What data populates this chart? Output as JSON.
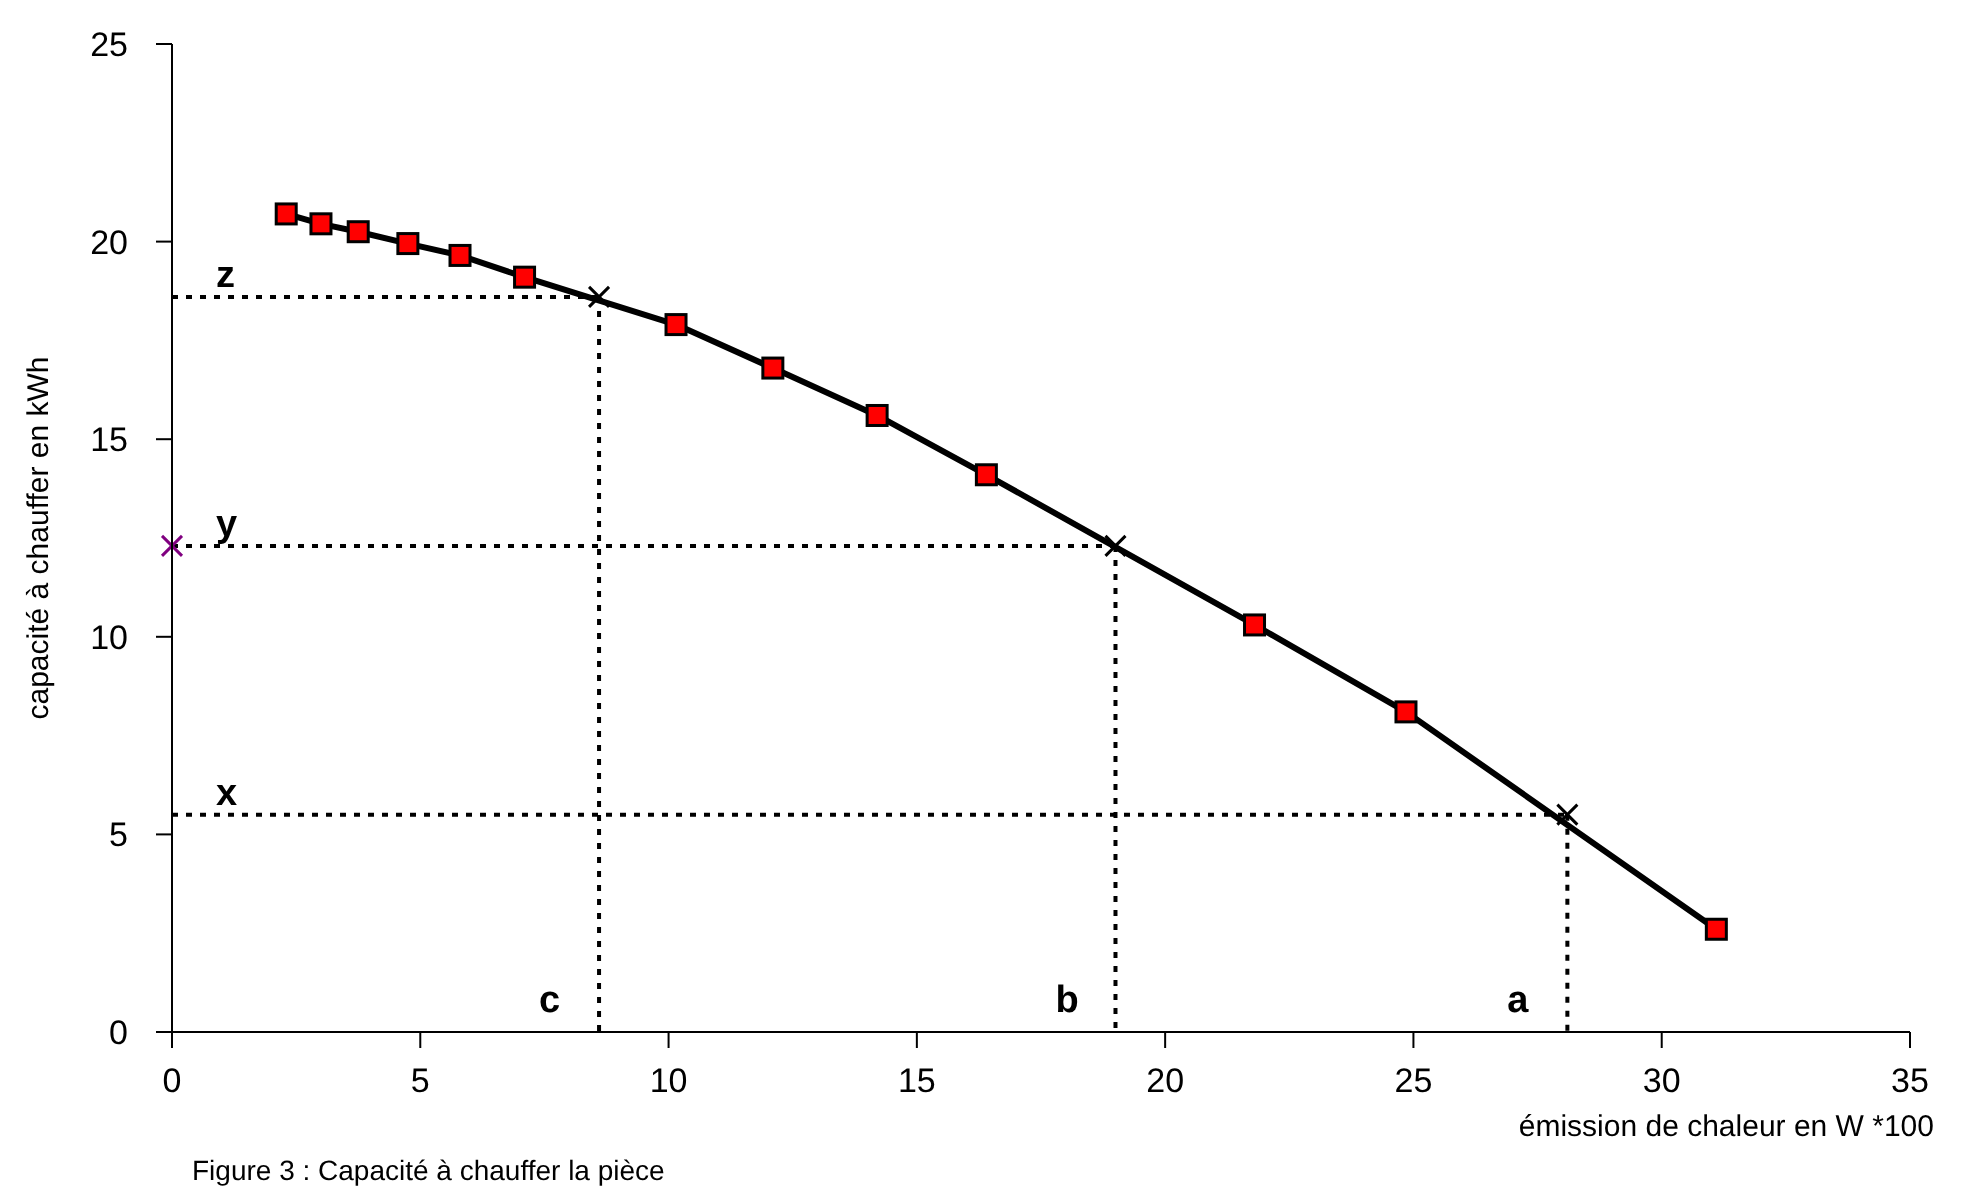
{
  "chart_data": {
    "type": "line",
    "xlabel": "émission de chaleur en W *100",
    "ylabel": "capacité à chauffer en kWh",
    "xlim": [
      0,
      35
    ],
    "ylim": [
      0,
      25
    ],
    "xticks": [
      0,
      5,
      10,
      15,
      20,
      25,
      30,
      35
    ],
    "yticks": [
      0,
      5,
      10,
      15,
      20,
      25
    ],
    "grid": false,
    "series": [
      {
        "name": "z",
        "color": "#000000",
        "line_style": "dotted",
        "x": [
          0,
          8.6
        ],
        "values": [
          18.6,
          18.6
        ]
      },
      {
        "name": "c",
        "color": "#000000",
        "line_style": "dotted",
        "x": [
          8.6,
          8.6
        ],
        "values": [
          18.6,
          0
        ]
      },
      {
        "name": "y",
        "color": "#000000",
        "line_style": "dotted",
        "x": [
          0,
          19.0
        ],
        "values": [
          12.3,
          12.3
        ]
      },
      {
        "name": "b",
        "color": "#000000",
        "line_style": "dotted",
        "x": [
          19.0,
          19.0
        ],
        "values": [
          12.3,
          0
        ]
      },
      {
        "name": "x",
        "color": "#000000",
        "line_style": "dotted",
        "x": [
          0,
          28.1
        ],
        "values": [
          5.5,
          5.5
        ]
      },
      {
        "name": "a",
        "color": "#000000",
        "line_style": "dotted",
        "x": [
          28.1,
          28.1
        ],
        "values": [
          5.5,
          0
        ]
      },
      {
        "color": "#ff0000",
        "line_style": "solid",
        "marker": "square",
        "x": [
          2.3,
          3.0,
          3.75,
          4.75,
          5.8,
          7.1,
          10.15,
          12.1,
          14.2,
          16.4,
          21.8,
          24.85,
          31.1
        ],
        "values": [
          20.7,
          20.45,
          20.25,
          19.95,
          19.65,
          19.1,
          17.9,
          16.8,
          15.6,
          14.1,
          10.3,
          8.1,
          2.6
        ]
      },
      {
        "type": "scatter",
        "color": "#000000",
        "marker": "cross",
        "x": [
          8.6,
          19.0,
          28.1
        ],
        "values": [
          18.6,
          12.3,
          5.5
        ]
      },
      {
        "type": "scatter",
        "color": "#800080",
        "marker": "cross",
        "x": [
          0
        ],
        "values": [
          12.3
        ]
      }
    ],
    "annotations": [
      "Figure 3 : Capacité à chauffer la pièce"
    ]
  }
}
